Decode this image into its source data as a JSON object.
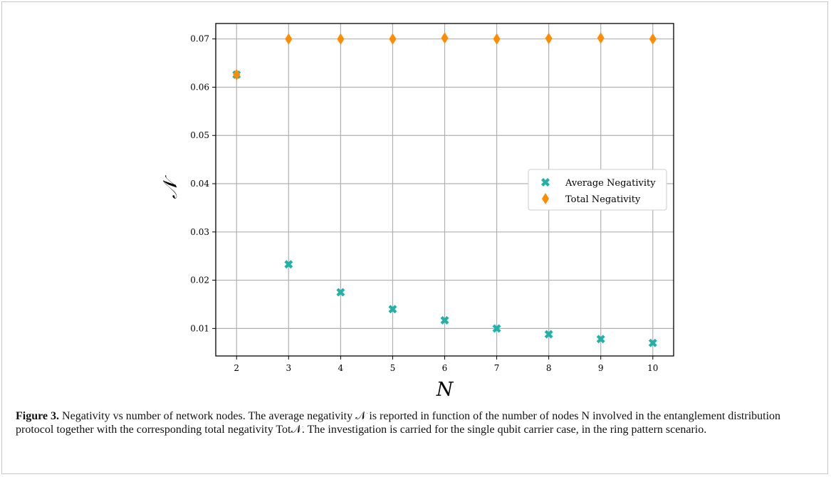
{
  "chart_data": {
    "type": "scatter",
    "xlabel": "N",
    "ylabel": "𝒩",
    "xlim": [
      1.6,
      10.4
    ],
    "ylim": [
      0.0043,
      0.0732
    ],
    "xticks": [
      2,
      3,
      4,
      5,
      6,
      7,
      8,
      9,
      10
    ],
    "yticks": [
      0.01,
      0.02,
      0.03,
      0.04,
      0.05,
      0.06,
      0.07
    ],
    "ytick_labels": [
      "0.01",
      "0.02",
      "0.03",
      "0.04",
      "0.05",
      "0.06",
      "0.07"
    ],
    "grid": true,
    "legend_position": "center-right",
    "x": [
      2,
      3,
      4,
      5,
      6,
      7,
      8,
      9,
      10
    ],
    "series": [
      {
        "name": "Average Negativity",
        "marker": "x",
        "color": "#20b2aa",
        "values": [
          0.0626,
          0.0233,
          0.0175,
          0.014,
          0.0117,
          0.01,
          0.0088,
          0.0078,
          0.007
        ]
      },
      {
        "name": "Total Negativity",
        "marker": "diamond",
        "color": "#ff8c00",
        "values": [
          0.0626,
          0.07,
          0.07,
          0.07,
          0.0702,
          0.07,
          0.0701,
          0.0702,
          0.07
        ]
      }
    ]
  },
  "caption": {
    "label": "Figure 3.",
    "text": "Negativity vs number of network nodes. The average negativity 𝒩 is reported in function of the number of nodes N involved in the entanglement distribution protocol together with the corresponding total negativity Tot𝒩. The investigation is carried for the single qubit carrier case, in the ring pattern scenario."
  }
}
